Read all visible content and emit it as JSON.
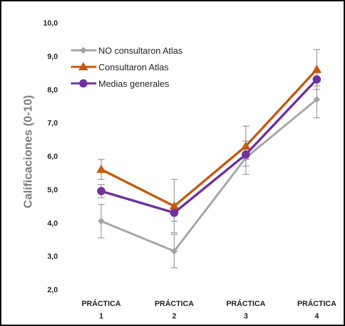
{
  "chart_data": {
    "type": "line",
    "ylabel": "Calificaciones (0-10)",
    "ylim": [
      2,
      10
    ],
    "y_ticks": [
      "2,0",
      "3,0",
      "4,0",
      "5,0",
      "6,0",
      "7,0",
      "8,0",
      "9,0",
      "10,0"
    ],
    "categories": [
      [
        "PRÁCTICA",
        "1"
      ],
      [
        "PRÁCTICA",
        "2"
      ],
      [
        "PRÁCTICA",
        "3"
      ],
      [
        "PRÁCTICA",
        "4"
      ]
    ],
    "legend_position": "top-left",
    "grid": false,
    "series": [
      {
        "name": "NO consultaron Atlas",
        "color": "#a5a5a5",
        "marker": "diamond",
        "values": [
          4.05,
          3.15,
          5.95,
          7.7
        ],
        "error": [
          0.5,
          0.5,
          0.5,
          0.55
        ]
      },
      {
        "name": "Consultaron Atlas",
        "color": "#c55a11",
        "marker": "triangle",
        "values": [
          5.6,
          4.5,
          6.3,
          8.6
        ],
        "error": [
          0.3,
          0.8,
          0.6,
          0.6
        ]
      },
      {
        "name": "Medias generales",
        "color": "#7030a0",
        "marker": "circle",
        "values": [
          4.95,
          4.3,
          6.05,
          8.3
        ],
        "error": [
          0.2,
          0.25,
          0.15,
          0.2
        ]
      }
    ]
  }
}
